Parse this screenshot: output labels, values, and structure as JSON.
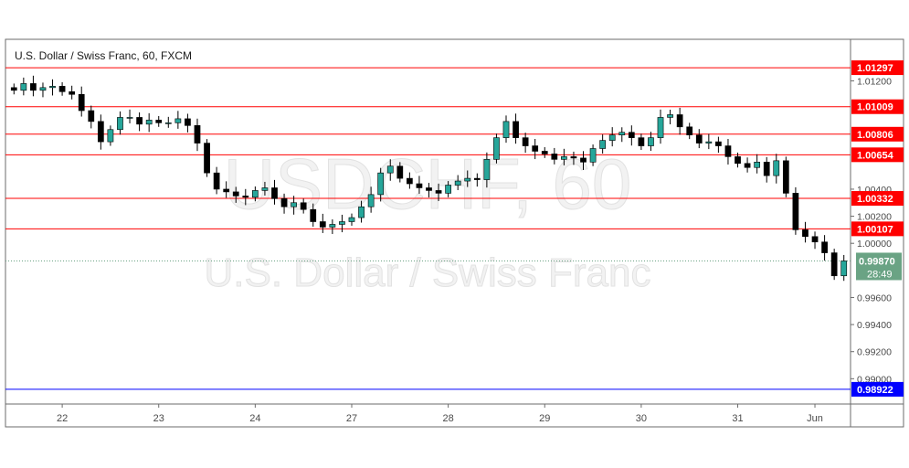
{
  "chart_data": {
    "type": "candlestick",
    "title": "U.S. Dollar / Swiss Franc, 60, FXCM",
    "watermark_symbol": "USDCHF, 60",
    "watermark_name": "U.S. Dollar / Swiss Franc",
    "ylim": [
      0.9882,
      1.015
    ],
    "y_ticks": [
      "1.01200",
      "1.00400",
      "1.00200",
      "1.00000",
      "0.99600",
      "0.99400",
      "0.99200",
      "0.99000"
    ],
    "y_tick_values": [
      1.012,
      1.004,
      1.002,
      1.0,
      0.996,
      0.994,
      0.992,
      0.99
    ],
    "x_ticks": [
      "22",
      "23",
      "24",
      "27",
      "28",
      "29",
      "30",
      "31",
      "Jun"
    ],
    "x_tick_positions": [
      5,
      15,
      25,
      35,
      45,
      55,
      65,
      75,
      83
    ],
    "candle_count": 87,
    "levels": [
      {
        "label": "1.01297",
        "value": 1.01297,
        "color": "#ff0000"
      },
      {
        "label": "1.01009",
        "value": 1.01009,
        "color": "#ff0000"
      },
      {
        "label": "1.00806",
        "value": 1.00806,
        "color": "#ff0000"
      },
      {
        "label": "1.00654",
        "value": 1.00654,
        "color": "#ff0000"
      },
      {
        "label": "1.00332",
        "value": 1.00332,
        "color": "#ff0000"
      },
      {
        "label": "1.00107",
        "value": 1.00107,
        "color": "#ff0000"
      },
      {
        "label": "0.98922",
        "value": 0.98922,
        "color": "#0000ff"
      }
    ],
    "current_price": {
      "label": "0.99870",
      "value": 0.9987,
      "countdown": "28:49",
      "color": "#6aa384"
    },
    "series": [
      {
        "name": "USDCHF",
        "close": [
          1.0113,
          1.0118,
          1.0113,
          1.0115,
          1.0116,
          1.0112,
          1.011,
          1.0098,
          1.009,
          1.0075,
          1.0084,
          1.0093,
          1.0093,
          1.0088,
          1.0091,
          1.0089,
          1.0089,
          1.0092,
          1.0087,
          1.0074,
          1.0052,
          1.004,
          1.0038,
          1.0035,
          1.0034,
          1.0039,
          1.0041,
          1.0033,
          1.0027,
          1.003,
          1.0025,
          1.0016,
          1.0012,
          1.0014,
          1.0016,
          1.0019,
          1.0027,
          1.0036,
          1.0052,
          1.0057,
          1.0048,
          1.0044,
          1.0041,
          1.0039,
          1.0037,
          1.0043,
          1.0046,
          1.0048,
          1.0047,
          1.0062,
          1.0078,
          1.009,
          1.0078,
          1.0072,
          1.0068,
          1.0066,
          1.0062,
          1.0064,
          1.0063,
          1.006,
          1.007,
          1.0076,
          1.008,
          1.0082,
          1.0078,
          1.0072,
          1.0078,
          1.0093,
          1.0095,
          1.0086,
          1.008,
          1.0074,
          1.0075,
          1.0072,
          1.0064,
          1.0059,
          1.0056,
          1.006,
          1.005,
          1.0061,
          1.0037,
          1.001,
          1.0005,
          1.0001,
          0.9993,
          0.9976,
          0.9987
        ]
      }
    ],
    "grid": false,
    "legend": "none",
    "colors": {
      "up": "#26a69a",
      "down": "#000000",
      "level": "#ff0000",
      "support": "#0000ff"
    }
  }
}
